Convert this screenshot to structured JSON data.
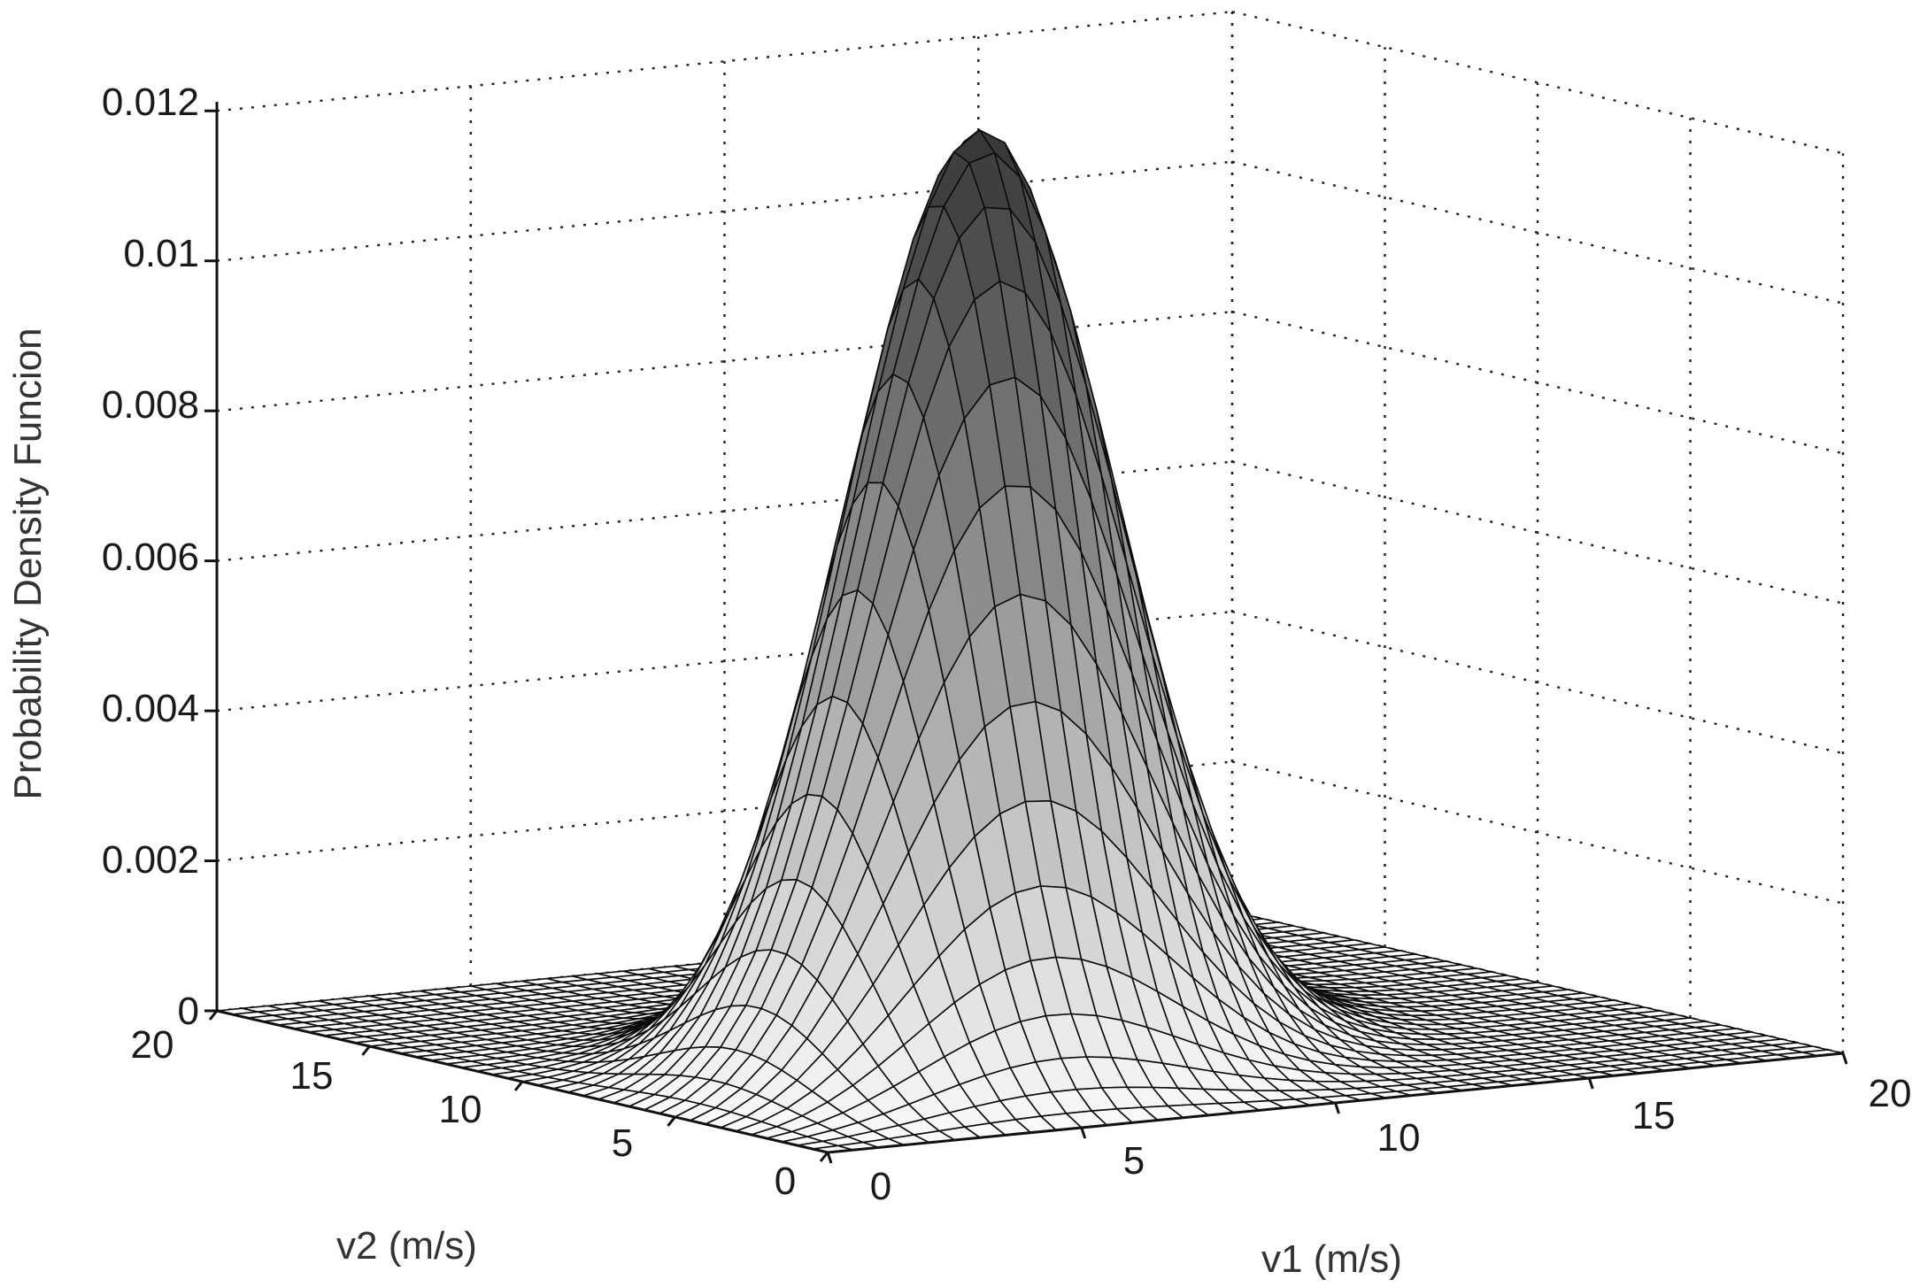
{
  "chart_data": {
    "type": "surface",
    "title": "",
    "xlabel": "v1 (m/s)",
    "ylabel": "v2 (m/s)",
    "zlabel": "Probability Density Funcion",
    "xlim": [
      0,
      20
    ],
    "ylim": [
      0,
      20
    ],
    "zlim": [
      0,
      0.012
    ],
    "x_ticks": [
      "0",
      "5",
      "10",
      "15",
      "20"
    ],
    "y_ticks": [
      "0",
      "5",
      "10",
      "15",
      "20"
    ],
    "z_ticks": [
      "0",
      "0.002",
      "0.004",
      "0.006",
      "0.008",
      "0.01",
      "0.012"
    ],
    "grid": true,
    "colormap": "gray",
    "surface": {
      "description_of_shape": "bivariate unimodal peak",
      "peak_location": {
        "v1": 7.5,
        "v2": 7.5
      },
      "peak_value": 0.0126,
      "mesh_resolution": 41
    }
  }
}
